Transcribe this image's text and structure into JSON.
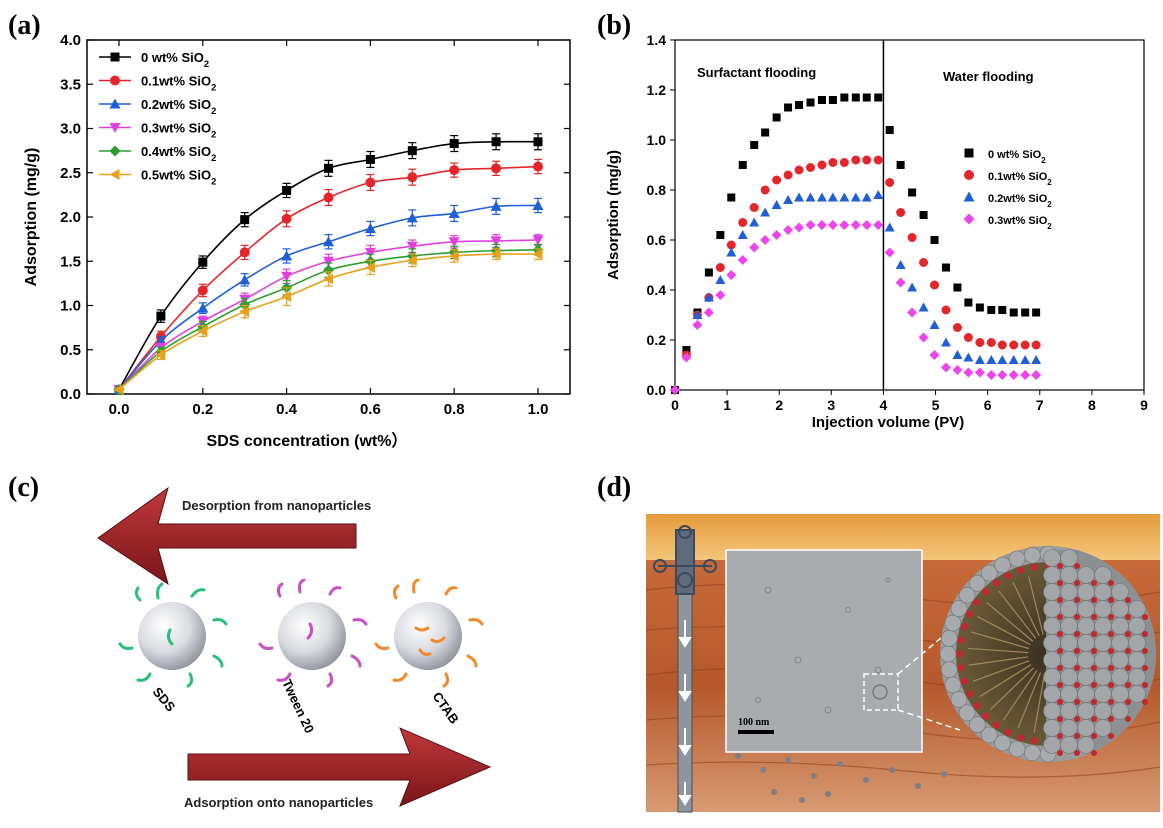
{
  "panels": {
    "a": "(a)",
    "b": "(b)",
    "c": "(c)",
    "d": "(d)"
  },
  "chart_data": [
    {
      "type": "line",
      "panel": "a",
      "xlabel": "SDS concentration (wt%）",
      "ylabel": "Adsorption (mg/g)",
      "xlim": [
        0.0,
        1.0
      ],
      "ylim": [
        0.0,
        4.0
      ],
      "xticks": [
        "0.0",
        "0.2",
        "0.4",
        "0.6",
        "0.8",
        "1.0"
      ],
      "yticks": [
        "0.0",
        "0.5",
        "1.0",
        "1.5",
        "2.0",
        "2.5",
        "3.0",
        "3.5",
        "4.0"
      ],
      "x": [
        0,
        0.1,
        0.2,
        0.3,
        0.4,
        0.5,
        0.6,
        0.7,
        0.8,
        0.9,
        1.0
      ],
      "legend_position": "top-left",
      "grid": false,
      "series": [
        {
          "name": "0  wt%  SiO₂",
          "color": "#000000",
          "marker": "square",
          "values": [
            0.05,
            0.88,
            1.49,
            1.97,
            2.3,
            2.55,
            2.65,
            2.75,
            2.83,
            2.85,
            2.85
          ],
          "error": [
            0,
            0.07,
            0.07,
            0.08,
            0.08,
            0.09,
            0.09,
            0.09,
            0.09,
            0.09,
            0.09
          ]
        },
        {
          "name": "0.1wt% SiO₂",
          "color": "#e4262a",
          "marker": "circle",
          "values": [
            0.05,
            0.65,
            1.17,
            1.6,
            1.98,
            2.22,
            2.39,
            2.45,
            2.53,
            2.55,
            2.57
          ],
          "error": [
            0,
            0.06,
            0.07,
            0.08,
            0.09,
            0.09,
            0.09,
            0.09,
            0.08,
            0.08,
            0.08
          ]
        },
        {
          "name": "0.2wt% SiO₂",
          "color": "#1f5fd8",
          "marker": "triangle-up",
          "values": [
            0.05,
            0.6,
            0.97,
            1.29,
            1.56,
            1.72,
            1.87,
            1.99,
            2.04,
            2.12,
            2.13
          ],
          "error": [
            0,
            0.05,
            0.06,
            0.07,
            0.08,
            0.08,
            0.08,
            0.09,
            0.09,
            0.09,
            0.08
          ]
        },
        {
          "name": "0.3wt% SiO₂",
          "color": "#e040e0",
          "marker": "triangle-down",
          "values": [
            0.05,
            0.52,
            0.82,
            1.07,
            1.33,
            1.5,
            1.6,
            1.67,
            1.72,
            1.73,
            1.74
          ],
          "error": [
            0,
            0.05,
            0.06,
            0.07,
            0.08,
            0.08,
            0.08,
            0.07,
            0.07,
            0.07,
            0.06
          ]
        },
        {
          "name": "0.4wt% SiO₂",
          "color": "#2e9e2e",
          "marker": "diamond",
          "values": [
            0.05,
            0.48,
            0.76,
            1.01,
            1.2,
            1.4,
            1.5,
            1.56,
            1.6,
            1.62,
            1.63
          ],
          "error": [
            0,
            0.05,
            0.06,
            0.07,
            0.08,
            0.08,
            0.08,
            0.08,
            0.07,
            0.07,
            0.06
          ]
        },
        {
          "name": "0.5wt% SiO₂",
          "color": "#e8a11a",
          "marker": "triangle-left",
          "values": [
            0.05,
            0.44,
            0.71,
            0.93,
            1.1,
            1.3,
            1.43,
            1.51,
            1.56,
            1.58,
            1.58
          ],
          "error": [
            0,
            0.05,
            0.06,
            0.07,
            0.1,
            0.08,
            0.08,
            0.07,
            0.07,
            0.06,
            0.06
          ]
        }
      ]
    },
    {
      "type": "scatter",
      "panel": "b",
      "xlabel": "Injection volume (PV)",
      "ylabel": "Adsorption (mg/g)",
      "xlim": [
        0,
        9
      ],
      "ylim": [
        0.0,
        1.4
      ],
      "xticks": [
        "0",
        "1",
        "2",
        "3",
        "4",
        "5",
        "6",
        "7",
        "8",
        "9"
      ],
      "yticks": [
        "0.0",
        "0.2",
        "0.4",
        "0.6",
        "0.8",
        "1.0",
        "1.2",
        "1.4"
      ],
      "annotations": [
        {
          "text": "Surfactant flooding",
          "x": 0.4,
          "y": 1.31
        },
        {
          "text": "Water flooding",
          "x": 4.55,
          "y": 1.3
        }
      ],
      "vline_x": 4,
      "legend_position": "right",
      "series": [
        {
          "name": "0 wt% SiO₂",
          "color": "#000000",
          "marker": "square",
          "x": [
            0,
            0.22,
            0.43,
            0.65,
            0.87,
            1.08,
            1.3,
            1.52,
            1.73,
            1.95,
            2.17,
            2.38,
            2.6,
            2.82,
            3.03,
            3.25,
            3.47,
            3.68,
            3.9,
            4.12,
            4.33,
            4.55,
            4.77,
            4.98,
            5.2,
            5.42,
            5.63,
            5.85,
            6.07,
            6.28,
            6.5,
            6.72,
            6.93
          ],
          "values": [
            0.0,
            0.16,
            0.31,
            0.47,
            0.62,
            0.77,
            0.9,
            0.98,
            1.03,
            1.09,
            1.13,
            1.14,
            1.15,
            1.16,
            1.16,
            1.17,
            1.17,
            1.17,
            1.17,
            1.04,
            0.9,
            0.79,
            0.7,
            0.6,
            0.49,
            0.41,
            0.35,
            0.33,
            0.32,
            0.32,
            0.31,
            0.31,
            0.31
          ]
        },
        {
          "name": "0.1wt% SiO₂",
          "color": "#e4262a",
          "marker": "circle",
          "x": [
            0.22,
            0.43,
            0.65,
            0.87,
            1.08,
            1.3,
            1.52,
            1.73,
            1.95,
            2.17,
            2.38,
            2.6,
            2.82,
            3.03,
            3.25,
            3.47,
            3.68,
            3.9,
            4.12,
            4.33,
            4.55,
            4.77,
            4.98,
            5.2,
            5.42,
            5.63,
            5.85,
            6.07,
            6.28,
            6.5,
            6.72,
            6.93
          ],
          "values": [
            0.14,
            0.3,
            0.37,
            0.49,
            0.58,
            0.67,
            0.73,
            0.8,
            0.84,
            0.86,
            0.88,
            0.89,
            0.9,
            0.91,
            0.91,
            0.92,
            0.92,
            0.92,
            0.83,
            0.71,
            0.61,
            0.51,
            0.42,
            0.32,
            0.25,
            0.21,
            0.19,
            0.19,
            0.18,
            0.18,
            0.18,
            0.18
          ]
        },
        {
          "name": "0.2wt% SiO₂",
          "color": "#1f5fd8",
          "marker": "triangle-up",
          "x": [
            0.43,
            0.65,
            0.87,
            1.08,
            1.3,
            1.52,
            1.73,
            1.95,
            2.17,
            2.38,
            2.6,
            2.82,
            3.03,
            3.25,
            3.47,
            3.68,
            3.9,
            4.12,
            4.33,
            4.55,
            4.77,
            4.98,
            5.2,
            5.42,
            5.63,
            5.85,
            6.07,
            6.28,
            6.5,
            6.72,
            6.93
          ],
          "values": [
            0.3,
            0.37,
            0.44,
            0.55,
            0.62,
            0.67,
            0.71,
            0.74,
            0.76,
            0.77,
            0.77,
            0.77,
            0.77,
            0.77,
            0.77,
            0.77,
            0.78,
            0.65,
            0.5,
            0.41,
            0.33,
            0.26,
            0.19,
            0.14,
            0.13,
            0.12,
            0.12,
            0.12,
            0.12,
            0.12,
            0.12
          ]
        },
        {
          "name": "0.3wt%  SiO₂",
          "color": "#ee44ee",
          "marker": "diamond",
          "x": [
            0,
            0.22,
            0.43,
            0.65,
            0.87,
            1.08,
            1.3,
            1.52,
            1.73,
            1.95,
            2.17,
            2.38,
            2.6,
            2.82,
            3.03,
            3.25,
            3.47,
            3.68,
            3.9,
            4.12,
            4.33,
            4.55,
            4.77,
            4.98,
            5.2,
            5.42,
            5.63,
            5.85,
            6.07,
            6.28,
            6.5,
            6.72,
            6.93
          ],
          "values": [
            0.0,
            0.13,
            0.26,
            0.31,
            0.38,
            0.46,
            0.52,
            0.57,
            0.6,
            0.62,
            0.64,
            0.65,
            0.66,
            0.66,
            0.66,
            0.66,
            0.66,
            0.66,
            0.66,
            0.55,
            0.43,
            0.31,
            0.21,
            0.14,
            0.09,
            0.08,
            0.07,
            0.07,
            0.06,
            0.06,
            0.06,
            0.06,
            0.06
          ]
        }
      ]
    }
  ],
  "panel_c": {
    "arrow_top_label": "Desorption from nanoparticles",
    "arrow_bottom_label": "Adsorption onto nanoparticles",
    "particles": [
      {
        "label": "SDS",
        "color": "#28c07a"
      },
      {
        "label": "Tween 20",
        "color": "#c94fc6"
      },
      {
        "label": "CTAB",
        "color": "#f08a2c"
      }
    ]
  },
  "panel_d": {
    "scale_bar_label": "100 nm"
  }
}
